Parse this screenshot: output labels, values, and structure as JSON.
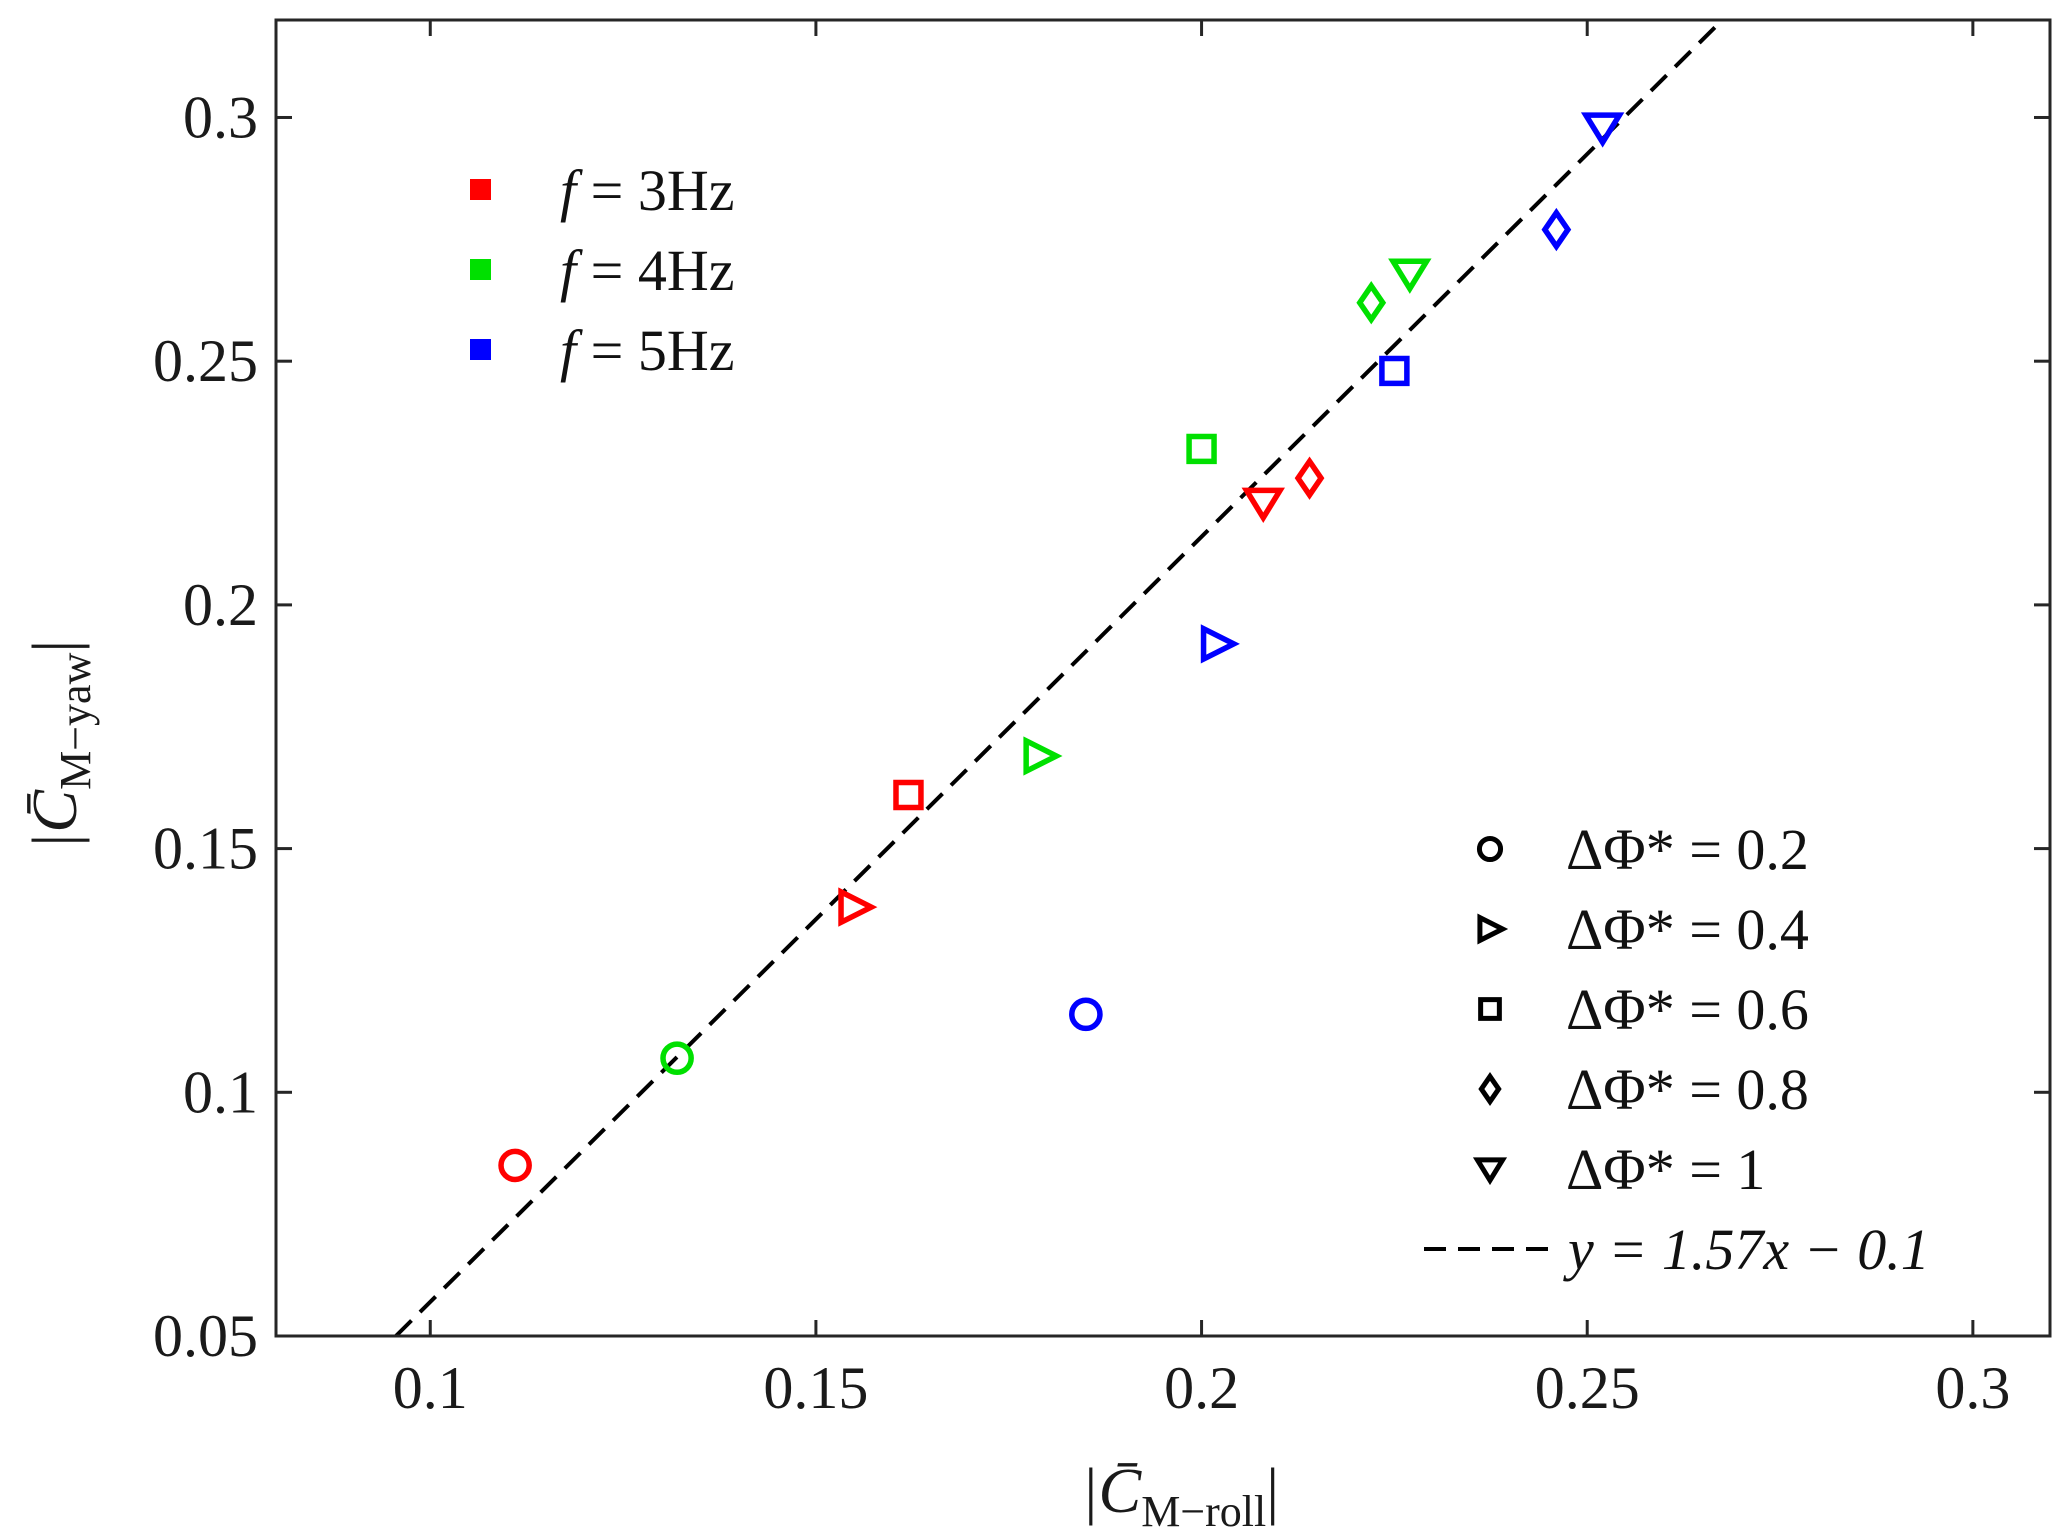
{
  "chart_data": {
    "type": "scatter",
    "xlabel": "|C̄M−roll|",
    "ylabel": "|C̄M−yaw|",
    "xlabel_main": "|C̄",
    "xlabel_sub": "M−roll",
    "xlabel_end": "|",
    "ylabel_main": "|C̄",
    "ylabel_sub": "M−yaw",
    "ylabel_end": "|",
    "xlim": [
      0.08,
      0.31
    ],
    "ylim": [
      0.05,
      0.32
    ],
    "xticks": [
      0.1,
      0.15,
      0.2,
      0.25,
      0.3
    ],
    "yticks": [
      0.05,
      0.1,
      0.15,
      0.2,
      0.25,
      0.3
    ],
    "xtick_labels": [
      "0.1",
      "0.15",
      "0.2",
      "0.25",
      "0.3"
    ],
    "ytick_labels": [
      "0.05",
      "0.1",
      "0.15",
      "0.2",
      "0.25",
      "0.3"
    ],
    "grid": false,
    "series": [
      {
        "name": "f = 3Hz",
        "color": "#ff0000",
        "points": [
          {
            "x": 0.111,
            "y": 0.085,
            "marker": "circle"
          },
          {
            "x": 0.155,
            "y": 0.138,
            "marker": "triangle-right"
          },
          {
            "x": 0.162,
            "y": 0.161,
            "marker": "square"
          },
          {
            "x": 0.214,
            "y": 0.226,
            "marker": "diamond"
          },
          {
            "x": 0.208,
            "y": 0.221,
            "marker": "triangle-down"
          }
        ]
      },
      {
        "name": "f = 4Hz",
        "color": "#00e000",
        "points": [
          {
            "x": 0.132,
            "y": 0.107,
            "marker": "circle"
          },
          {
            "x": 0.179,
            "y": 0.169,
            "marker": "triangle-right"
          },
          {
            "x": 0.2,
            "y": 0.232,
            "marker": "square"
          },
          {
            "x": 0.222,
            "y": 0.262,
            "marker": "diamond"
          },
          {
            "x": 0.227,
            "y": 0.268,
            "marker": "triangle-down"
          }
        ]
      },
      {
        "name": "f = 5Hz",
        "color": "#0000ff",
        "points": [
          {
            "x": 0.185,
            "y": 0.116,
            "marker": "circle"
          },
          {
            "x": 0.202,
            "y": 0.192,
            "marker": "triangle-right"
          },
          {
            "x": 0.225,
            "y": 0.248,
            "marker": "square"
          },
          {
            "x": 0.246,
            "y": 0.277,
            "marker": "diamond"
          },
          {
            "x": 0.252,
            "y": 0.298,
            "marker": "triangle-down"
          }
        ]
      }
    ],
    "fit_line": {
      "label": "y = 1.57x − 0.1",
      "slope": 1.57,
      "intercept": -0.1,
      "color": "#000000",
      "style": "dashed"
    },
    "legend_frequency": {
      "placement": "top-left",
      "entries": [
        {
          "prefix": "f",
          "text": " = 3Hz",
          "color": "#ff0000"
        },
        {
          "prefix": "f",
          "text": " = 4Hz",
          "color": "#00e000"
        },
        {
          "prefix": "f",
          "text": " = 5Hz",
          "color": "#0000ff"
        }
      ]
    },
    "legend_marker": {
      "placement": "bottom-right",
      "entries": [
        {
          "marker": "circle",
          "text": "ΔΦ* = 0.2"
        },
        {
          "marker": "triangle-right",
          "text": "ΔΦ* = 0.4"
        },
        {
          "marker": "square",
          "text": "ΔΦ* = 0.6"
        },
        {
          "marker": "diamond",
          "text": "ΔΦ* = 0.8"
        },
        {
          "marker": "triangle-down",
          "text": "ΔΦ* = 1"
        },
        {
          "marker": "dashed-line",
          "text": "y = 1.57x − 0.1"
        }
      ]
    }
  }
}
